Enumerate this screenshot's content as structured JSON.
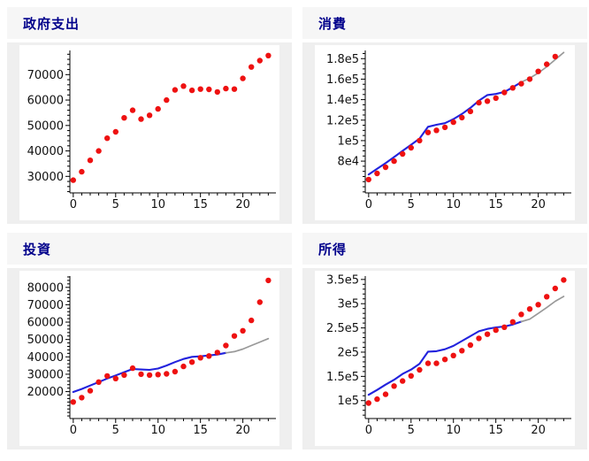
{
  "colors": {
    "page_bg": "#ffffff",
    "header_bg": "#f6f6f6",
    "body_bg": "#efefef",
    "figure_bg": "#ffffff",
    "title_text": "#00008b",
    "axis_color": "#000000",
    "tick_label_color": "#111111",
    "red_dots": "#ee1111",
    "blue_fit_line": "#2222dd",
    "gray_forecast_line": "#999999"
  },
  "chart_data": [
    {
      "type": "scatter",
      "title": "政府支出",
      "xlim": [
        -0.4,
        23.9
      ],
      "ylim": [
        23500,
        79500
      ],
      "xticks": {
        "major": [
          0,
          5,
          10,
          15,
          20
        ],
        "labels": [
          "0",
          "5",
          "10",
          "15",
          "20"
        ],
        "minor_step": 1
      },
      "yticks": {
        "major": [
          30000,
          40000,
          50000,
          60000,
          70000
        ],
        "labels": [
          "30000",
          "40000",
          "50000",
          "60000",
          "70000"
        ],
        "minor_step": 2000
      },
      "series": [
        {
          "name": "government-spending-data",
          "style": "scatter",
          "color": "red_dots",
          "x": [
            0,
            1,
            2,
            3,
            4,
            5,
            6,
            7,
            8,
            9,
            10,
            11,
            12,
            13,
            14,
            15,
            16,
            17,
            18,
            19,
            20,
            21,
            22,
            23
          ],
          "values": [
            28500,
            31800,
            36300,
            40000,
            45000,
            47500,
            53000,
            56000,
            52500,
            54000,
            56500,
            60000,
            64000,
            65500,
            63800,
            64300,
            64200,
            63200,
            64500,
            64300,
            68500,
            73000,
            75500,
            77500
          ]
        }
      ]
    },
    {
      "type": "scatter",
      "title": "消費",
      "xlim": [
        -0.4,
        23.9
      ],
      "ylim": [
        49000,
        188000
      ],
      "xticks": {
        "major": [
          0,
          5,
          10,
          15,
          20
        ],
        "labels": [
          "0",
          "5",
          "10",
          "15",
          "20"
        ],
        "minor_step": 1
      },
      "yticks": {
        "major": [
          80000,
          100000,
          120000,
          140000,
          160000,
          180000
        ],
        "labels": [
          "8e4",
          "1e5",
          "1.2e5",
          "1.4e5",
          "1.6e5",
          "1.8e5"
        ],
        "minor_step": 5000
      },
      "series": [
        {
          "name": "consumption-fit-line",
          "style": "line",
          "color": "blue_fit_line",
          "x": [
            0,
            1,
            2,
            3,
            4,
            5,
            6,
            7,
            8,
            9,
            10,
            11,
            12,
            13,
            14,
            15,
            16,
            17,
            18
          ],
          "values": [
            67000,
            72500,
            78000,
            84000,
            90000,
            96000,
            102000,
            113500,
            115500,
            117000,
            121000,
            126000,
            132000,
            139000,
            144500,
            145500,
            147500,
            152000,
            157000
          ]
        },
        {
          "name": "consumption-forecast-line",
          "style": "line",
          "color": "gray_forecast_line",
          "x": [
            18,
            19,
            20,
            21,
            22,
            23
          ],
          "values": [
            157000,
            161000,
            166000,
            172000,
            179000,
            186000
          ]
        },
        {
          "name": "consumption-data",
          "style": "scatter",
          "color": "red_dots",
          "x": [
            0,
            1,
            2,
            3,
            4,
            5,
            6,
            7,
            8,
            9,
            10,
            11,
            12,
            13,
            14,
            15,
            16,
            17,
            18,
            19,
            20,
            21,
            22
          ],
          "values": [
            62000,
            68000,
            74000,
            80000,
            87000,
            93000,
            100000,
            108000,
            110000,
            113000,
            118000,
            122500,
            128500,
            137000,
            138500,
            141500,
            147000,
            151500,
            155500,
            160000,
            167500,
            174500,
            182000
          ]
        }
      ]
    },
    {
      "type": "scatter",
      "title": "投資",
      "xlim": [
        -0.4,
        23.9
      ],
      "ylim": [
        4500,
        86500
      ],
      "xticks": {
        "major": [
          0,
          5,
          10,
          15,
          20
        ],
        "labels": [
          "0",
          "5",
          "10",
          "15",
          "20"
        ],
        "minor_step": 1
      },
      "yticks": {
        "major": [
          20000,
          30000,
          40000,
          50000,
          60000,
          70000,
          80000
        ],
        "labels": [
          "20000",
          "30000",
          "40000",
          "50000",
          "60000",
          "70000",
          "80000"
        ],
        "minor_step": 2000
      },
      "series": [
        {
          "name": "investment-fit-line",
          "style": "line",
          "color": "blue_fit_line",
          "x": [
            0,
            1,
            2,
            3,
            4,
            5,
            6,
            7,
            8,
            9,
            10,
            11,
            12,
            13,
            14,
            15,
            16,
            17,
            18
          ],
          "values": [
            19800,
            21500,
            23500,
            25500,
            27500,
            29300,
            31200,
            33000,
            32700,
            32500,
            33300,
            35000,
            37000,
            38800,
            40000,
            40300,
            40800,
            41300,
            42300
          ]
        },
        {
          "name": "investment-forecast-line",
          "style": "line",
          "color": "gray_forecast_line",
          "x": [
            18,
            19,
            20,
            21,
            22,
            23
          ],
          "values": [
            42300,
            43000,
            44500,
            46500,
            48500,
            50500
          ]
        },
        {
          "name": "investment-data",
          "style": "scatter",
          "color": "red_dots",
          "x": [
            0,
            1,
            2,
            3,
            4,
            5,
            6,
            7,
            8,
            9,
            10,
            11,
            12,
            13,
            14,
            15,
            16,
            17,
            18,
            19,
            20,
            21,
            22,
            23
          ],
          "values": [
            14000,
            16500,
            20500,
            25500,
            29000,
            27500,
            29500,
            33500,
            30000,
            29500,
            29800,
            30200,
            31500,
            34500,
            37000,
            39500,
            40500,
            42500,
            46500,
            52000,
            55000,
            61000,
            71500,
            84000
          ]
        }
      ]
    },
    {
      "type": "scatter",
      "title": "所得",
      "xlim": [
        -0.4,
        23.9
      ],
      "ylim": [
        63000,
        357000
      ],
      "xticks": {
        "major": [
          0,
          5,
          10,
          15,
          20
        ],
        "labels": [
          "0",
          "5",
          "10",
          "15",
          "20"
        ],
        "minor_step": 1
      },
      "yticks": {
        "major": [
          100000,
          150000,
          200000,
          250000,
          300000,
          350000
        ],
        "labels": [
          "1e5",
          "1.5e5",
          "2e5",
          "2.5e5",
          "3e5",
          "3.5e5"
        ],
        "minor_step": 10000
      },
      "series": [
        {
          "name": "income-fit-line",
          "style": "line",
          "color": "blue_fit_line",
          "x": [
            0,
            1,
            2,
            3,
            4,
            5,
            6,
            7,
            8,
            9,
            10,
            11,
            12,
            13,
            14,
            15,
            16,
            17,
            18
          ],
          "values": [
            112000,
            122000,
            133000,
            143000,
            155000,
            164000,
            176000,
            201000,
            202000,
            206000,
            213000,
            223000,
            233000,
            243000,
            248000,
            251000,
            253000,
            257000,
            263000
          ]
        },
        {
          "name": "income-forecast-line",
          "style": "line",
          "color": "gray_forecast_line",
          "x": [
            18,
            19,
            20,
            21,
            22,
            23
          ],
          "values": [
            263000,
            268000,
            280000,
            292000,
            305000,
            315000
          ]
        },
        {
          "name": "income-data",
          "style": "scatter",
          "color": "red_dots",
          "x": [
            0,
            1,
            2,
            3,
            4,
            5,
            6,
            7,
            8,
            9,
            10,
            11,
            12,
            13,
            14,
            15,
            16,
            17,
            18,
            19,
            20,
            21,
            22,
            23
          ],
          "values": [
            95000,
            103000,
            113000,
            130000,
            140500,
            151000,
            163500,
            177000,
            177000,
            185000,
            193000,
            203000,
            214500,
            228500,
            237000,
            245500,
            251500,
            262500,
            278000,
            289000,
            298000,
            314500,
            331500,
            349000
          ]
        }
      ]
    }
  ]
}
